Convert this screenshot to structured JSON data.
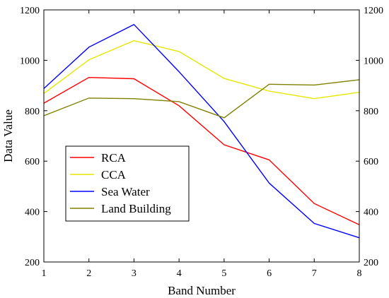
{
  "chart_data": {
    "type": "line",
    "xlabel": "Band Number",
    "ylabel": "Data Value",
    "x": [
      1,
      2,
      3,
      4,
      5,
      6,
      7,
      8
    ],
    "xlim": [
      1,
      8
    ],
    "ylim": [
      200,
      1200
    ],
    "x_ticks": [
      1,
      2,
      3,
      4,
      5,
      6,
      7,
      8
    ],
    "y_ticks": [
      200,
      400,
      600,
      800,
      1000,
      1200
    ],
    "y_axis_right_mirrored": true,
    "grid": false,
    "legend_position": "lower-left",
    "series": [
      {
        "name": "RCA",
        "color": "#ff0000",
        "values": [
          830,
          932,
          927,
          820,
          665,
          605,
          432,
          348
        ]
      },
      {
        "name": "CCA",
        "color": "#e6e600",
        "values": [
          868,
          1002,
          1078,
          1035,
          928,
          878,
          848,
          873
        ]
      },
      {
        "name": "Sea Water",
        "color": "#0000ff",
        "values": [
          888,
          1052,
          1142,
          955,
          757,
          513,
          353,
          296
        ]
      },
      {
        "name": "Land Building",
        "color": "#808000",
        "values": [
          780,
          850,
          848,
          836,
          772,
          905,
          902,
          923
        ]
      }
    ]
  }
}
